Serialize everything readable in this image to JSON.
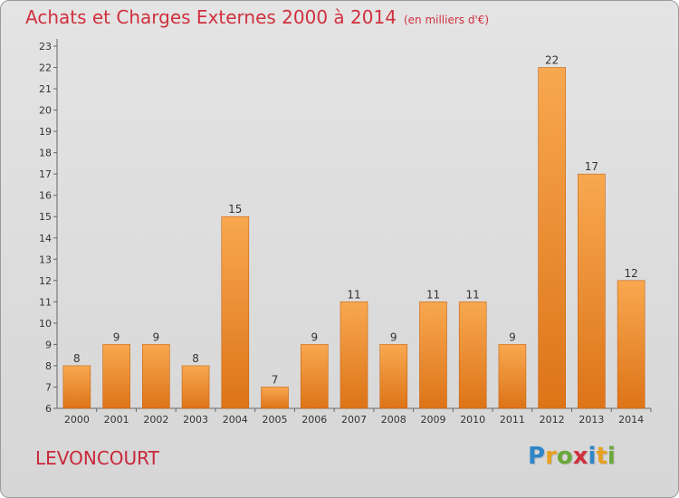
{
  "header": {
    "title": "Achats et Charges Externes 2000 à 2014",
    "subtitle": "(en milliers d'€)"
  },
  "footer": {
    "commune": "LEVONCOURT",
    "logo_letters": [
      "P",
      "r",
      "o",
      "x",
      "i",
      "t",
      "i"
    ],
    "logo_colors": [
      "#2f86c8",
      "#e8a020",
      "#6aa83a",
      "#d0303e",
      "#2f86c8",
      "#e8a020",
      "#6aa83a"
    ]
  },
  "chart_data": {
    "type": "bar",
    "categories": [
      "2000",
      "2001",
      "2002",
      "2003",
      "2004",
      "2005",
      "2006",
      "2007",
      "2008",
      "2009",
      "2010",
      "2011",
      "2012",
      "2013",
      "2014"
    ],
    "values": [
      8,
      9,
      9,
      8,
      15,
      7,
      9,
      11,
      9,
      11,
      11,
      9,
      22,
      17,
      12
    ],
    "ylim": [
      6,
      23
    ],
    "yticks": [
      6,
      7,
      8,
      9,
      10,
      11,
      12,
      13,
      14,
      15,
      16,
      17,
      18,
      19,
      20,
      21,
      22,
      23
    ],
    "grid": false,
    "data_labels": true,
    "bar_color_top": "#f8a850",
    "bar_color_bottom": "#dd7418",
    "bar_edge": "#c86412"
  }
}
